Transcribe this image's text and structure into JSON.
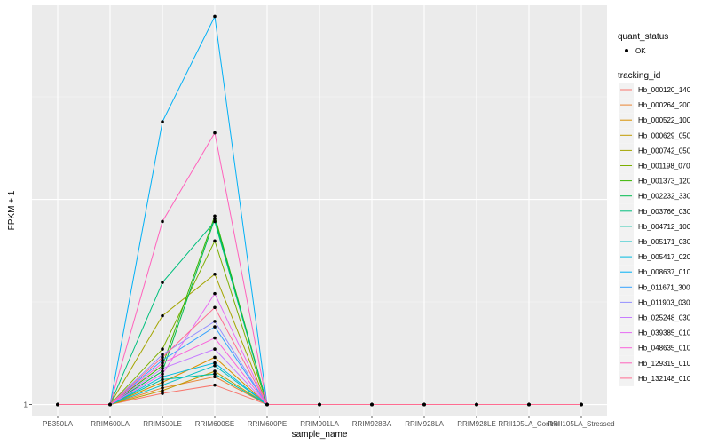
{
  "chart_data": {
    "type": "line",
    "xlabel": "sample_name",
    "ylabel": "FPKM + 1",
    "categories": [
      "PB350LA",
      "RRIM600LA",
      "RRIM600LE",
      "RRIM600SE",
      "RRIM600PE",
      "RRIM901LA",
      "RRIM928BA",
      "RRIM928LA",
      "RRIM928LE",
      "RRII105LA_Control",
      "RRII105LA_Stressed"
    ],
    "y_tick_labels": [
      "1"
    ],
    "ylim": [
      0.98,
      1.72
    ],
    "grid": true,
    "points_legend": {
      "title": "quant_status",
      "entries": [
        "OK"
      ]
    },
    "legend_title": "tracking_id",
    "legend_position": "right",
    "series": [
      {
        "name": "Hb_000120_140",
        "color": "#F8766D",
        "values": [
          1,
          1,
          1.02,
          1.035,
          1,
          1,
          1,
          1,
          1,
          1,
          1
        ]
      },
      {
        "name": "Hb_000264_200",
        "color": "#EA8331",
        "values": [
          1,
          1,
          1.03,
          1.05,
          1,
          1,
          1,
          1,
          1,
          1,
          1
        ]
      },
      {
        "name": "Hb_000522_100",
        "color": "#D89000",
        "values": [
          1,
          1,
          1.04,
          1.085,
          1,
          1,
          1,
          1,
          1,
          1,
          1
        ]
      },
      {
        "name": "Hb_000629_050",
        "color": "#C09B00",
        "values": [
          1,
          1,
          1.025,
          1.06,
          1,
          1,
          1,
          1,
          1,
          1,
          1
        ]
      },
      {
        "name": "Hb_000742_050",
        "color": "#A3A500",
        "values": [
          1,
          1,
          1.16,
          1.235,
          1,
          1,
          1,
          1,
          1,
          1,
          1
        ]
      },
      {
        "name": "Hb_001198_070",
        "color": "#7CAE00",
        "values": [
          1,
          1,
          1.1,
          1.295,
          1,
          1,
          1,
          1,
          1,
          1,
          1
        ]
      },
      {
        "name": "Hb_001373_120",
        "color": "#39B600",
        "values": [
          1,
          1,
          1.07,
          1.34,
          1,
          1,
          1,
          1,
          1,
          1,
          1
        ]
      },
      {
        "name": "Hb_002232_330",
        "color": "#00BB4E",
        "values": [
          1,
          1,
          1.06,
          1.335,
          1,
          1,
          1,
          1,
          1,
          1,
          1
        ]
      },
      {
        "name": "Hb_003766_030",
        "color": "#00BF7D",
        "values": [
          1,
          1,
          1.22,
          1.33,
          1,
          1,
          1,
          1,
          1,
          1,
          1
        ]
      },
      {
        "name": "Hb_004712_100",
        "color": "#00C1A3",
        "values": [
          1,
          1,
          1.045,
          1.055,
          1,
          1,
          1,
          1,
          1,
          1,
          1
        ]
      },
      {
        "name": "Hb_005171_030",
        "color": "#00BFC4",
        "values": [
          1,
          1,
          1.035,
          1.07,
          1,
          1,
          1,
          1,
          1,
          1,
          1
        ]
      },
      {
        "name": "Hb_005417_020",
        "color": "#00BAE0",
        "values": [
          1,
          1,
          1.05,
          1.075,
          1,
          1,
          1,
          1,
          1,
          1,
          1
        ]
      },
      {
        "name": "Hb_008637_010",
        "color": "#00B0F6",
        "values": [
          1,
          1,
          1.51,
          1.7,
          1,
          1,
          1,
          1,
          1,
          1,
          1
        ]
      },
      {
        "name": "Hb_011671_300",
        "color": "#35A2FF",
        "values": [
          1,
          1,
          1.08,
          1.14,
          1,
          1,
          1,
          1,
          1,
          1,
          1
        ]
      },
      {
        "name": "Hb_011903_030",
        "color": "#9590FF",
        "values": [
          1,
          1,
          1.09,
          1.15,
          1,
          1,
          1,
          1,
          1,
          1,
          1
        ]
      },
      {
        "name": "Hb_025248_030",
        "color": "#C77CFF",
        "values": [
          1,
          1,
          1.065,
          1.1,
          1,
          1,
          1,
          1,
          1,
          1,
          1
        ]
      },
      {
        "name": "Hb_039385_010",
        "color": "#E76BF3",
        "values": [
          1,
          1,
          1.055,
          1.2,
          1,
          1,
          1,
          1,
          1,
          1,
          1
        ]
      },
      {
        "name": "Hb_048635_010",
        "color": "#FA62DB",
        "values": [
          1,
          1,
          1.075,
          1.12,
          1,
          1,
          1,
          1,
          1,
          1,
          1
        ]
      },
      {
        "name": "Hb_129319_010",
        "color": "#FF62BC",
        "values": [
          1,
          1,
          1.33,
          1.49,
          1,
          1,
          1,
          1,
          1,
          1,
          1
        ]
      },
      {
        "name": "Hb_132148_010",
        "color": "#FF6C91",
        "values": [
          1,
          1,
          1.085,
          1.175,
          1,
          1,
          1,
          1,
          1,
          1,
          1
        ]
      }
    ]
  }
}
